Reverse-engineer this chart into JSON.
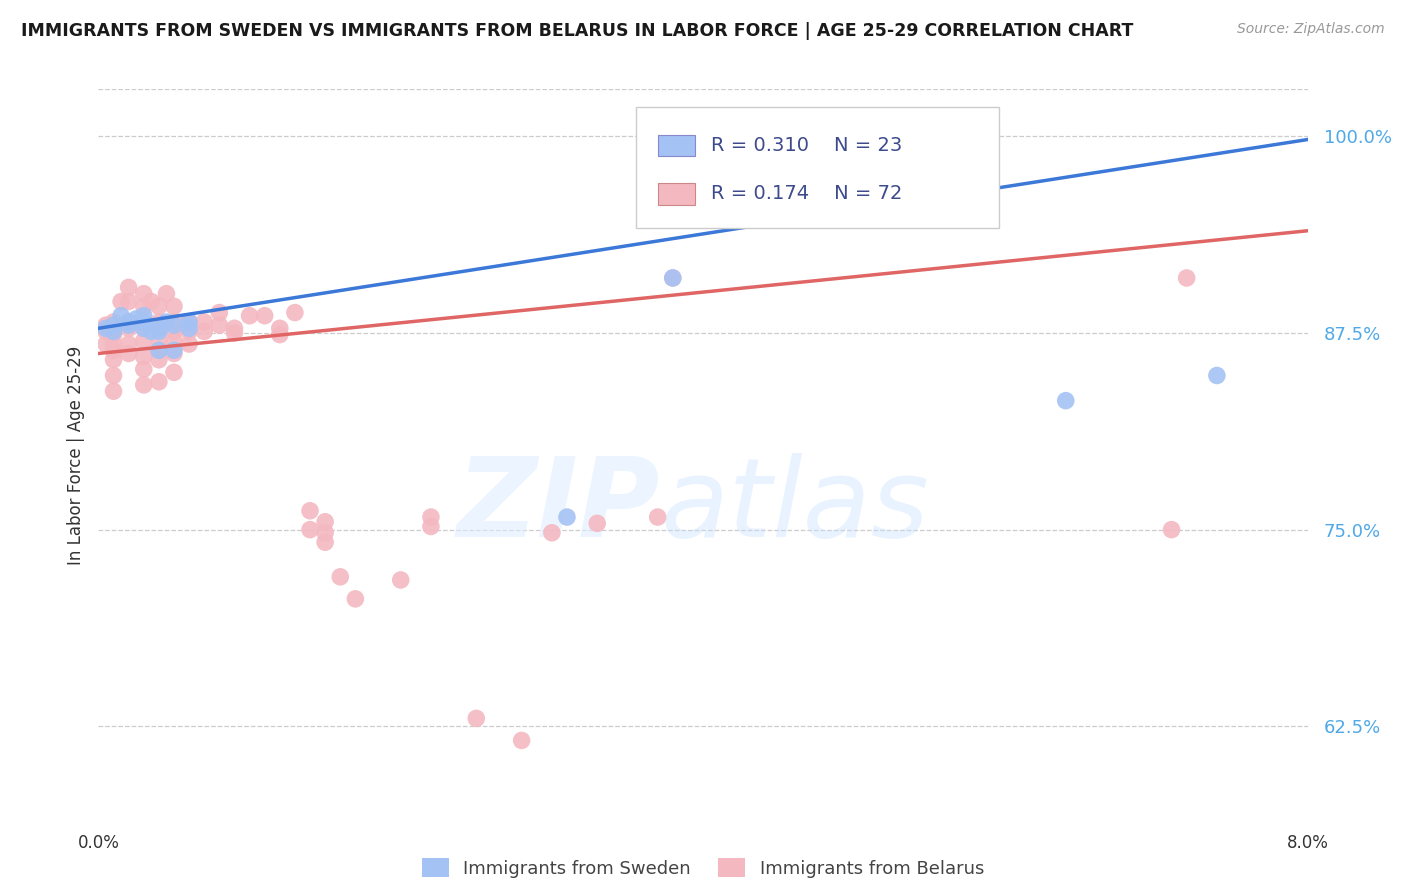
{
  "title": "IMMIGRANTS FROM SWEDEN VS IMMIGRANTS FROM BELARUS IN LABOR FORCE | AGE 25-29 CORRELATION CHART",
  "source": "Source: ZipAtlas.com",
  "ylabel": "In Labor Force | Age 25-29",
  "yticks": [
    "100.0%",
    "87.5%",
    "75.0%",
    "62.5%"
  ],
  "ytick_vals": [
    1.0,
    0.875,
    0.75,
    0.625
  ],
  "xlim": [
    0.0,
    0.08
  ],
  "ylim": [
    0.565,
    1.03
  ],
  "sweden_R": "0.310",
  "sweden_N": "23",
  "belarus_R": "0.174",
  "belarus_N": "72",
  "sweden_color": "#a4c2f4",
  "belarus_color": "#f4b8c1",
  "sweden_line_color": "#3c78d8",
  "belarus_line_color": "#e06666",
  "legend_text_color": "#3d4b8c",
  "sweden_trendline_x": [
    0.0,
    0.08
  ],
  "sweden_trendline_y": [
    0.878,
    0.998
  ],
  "belarus_trendline_x": [
    0.0,
    0.08
  ],
  "belarus_trendline_y": [
    0.862,
    0.94
  ],
  "sweden_x": [
    0.0005,
    0.001,
    0.001,
    0.0015,
    0.002,
    0.002,
    0.0025,
    0.003,
    0.003,
    0.003,
    0.0035,
    0.004,
    0.004,
    0.004,
    0.0045,
    0.005,
    0.005,
    0.006,
    0.006,
    0.031,
    0.038,
    0.064,
    0.074
  ],
  "sweden_y": [
    0.878,
    0.88,
    0.876,
    0.886,
    0.882,
    0.88,
    0.884,
    0.878,
    0.882,
    0.886,
    0.876,
    0.878,
    0.876,
    0.864,
    0.882,
    0.88,
    0.864,
    0.882,
    0.878,
    0.758,
    0.91,
    0.832,
    0.848
  ],
  "belarus_x": [
    0.0005,
    0.0005,
    0.0005,
    0.001,
    0.001,
    0.001,
    0.001,
    0.001,
    0.001,
    0.001,
    0.001,
    0.0015,
    0.002,
    0.002,
    0.002,
    0.002,
    0.002,
    0.002,
    0.003,
    0.003,
    0.003,
    0.003,
    0.003,
    0.003,
    0.003,
    0.0035,
    0.004,
    0.004,
    0.004,
    0.004,
    0.004,
    0.004,
    0.004,
    0.0045,
    0.005,
    0.005,
    0.005,
    0.005,
    0.005,
    0.005,
    0.006,
    0.006,
    0.006,
    0.007,
    0.007,
    0.008,
    0.008,
    0.009,
    0.009,
    0.01,
    0.011,
    0.012,
    0.012,
    0.013,
    0.014,
    0.014,
    0.015,
    0.015,
    0.015,
    0.016,
    0.017,
    0.02,
    0.022,
    0.022,
    0.025,
    0.028,
    0.03,
    0.033,
    0.037,
    0.038,
    0.071,
    0.072
  ],
  "belarus_y": [
    0.88,
    0.876,
    0.868,
    0.882,
    0.876,
    0.874,
    0.868,
    0.864,
    0.858,
    0.848,
    0.838,
    0.895,
    0.904,
    0.895,
    0.882,
    0.878,
    0.868,
    0.862,
    0.9,
    0.892,
    0.878,
    0.87,
    0.86,
    0.852,
    0.842,
    0.895,
    0.892,
    0.882,
    0.878,
    0.87,
    0.864,
    0.858,
    0.844,
    0.9,
    0.892,
    0.882,
    0.876,
    0.87,
    0.862,
    0.85,
    0.882,
    0.876,
    0.868,
    0.882,
    0.876,
    0.888,
    0.88,
    0.878,
    0.875,
    0.886,
    0.886,
    0.878,
    0.874,
    0.888,
    0.762,
    0.75,
    0.755,
    0.748,
    0.742,
    0.72,
    0.706,
    0.718,
    0.758,
    0.752,
    0.63,
    0.616,
    0.748,
    0.754,
    0.758,
    0.91,
    0.75,
    0.91
  ]
}
